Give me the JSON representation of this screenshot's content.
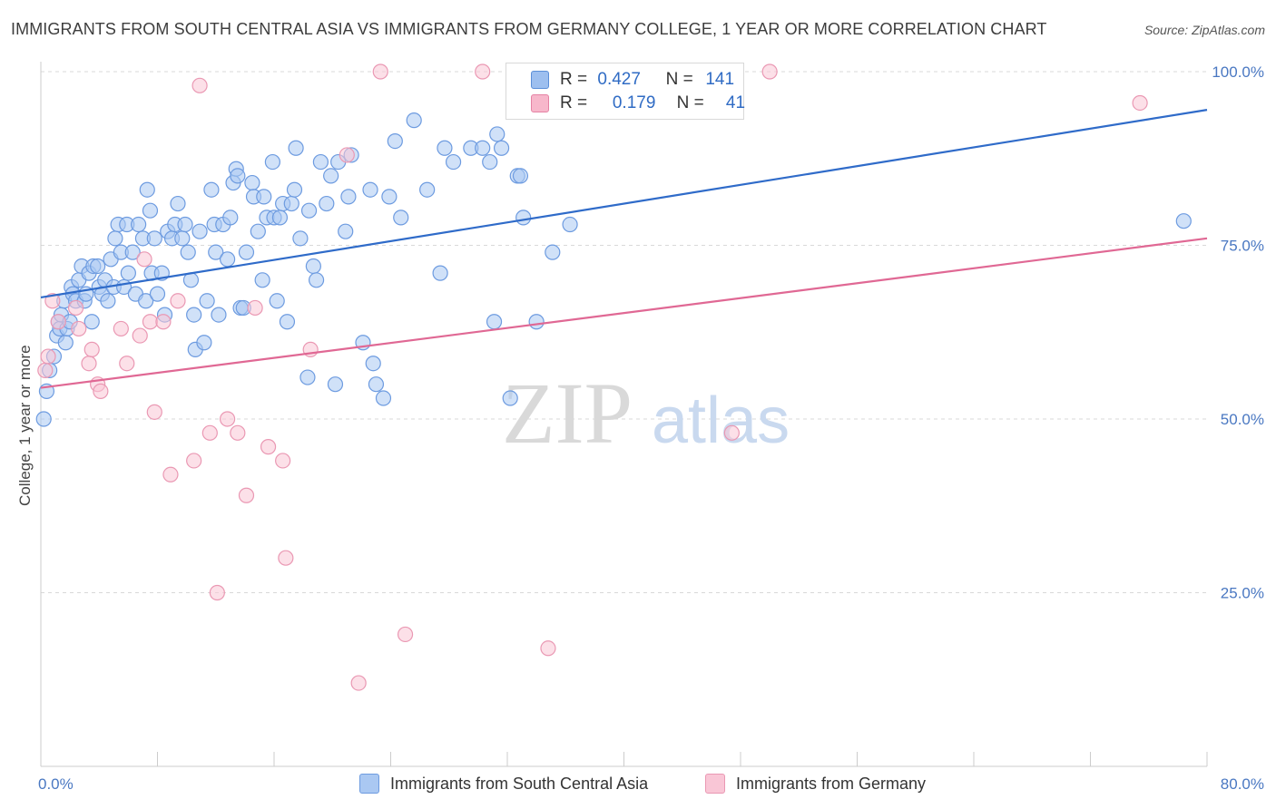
{
  "header": {
    "title": "IMMIGRANTS FROM SOUTH CENTRAL ASIA VS IMMIGRANTS FROM GERMANY COLLEGE, 1 YEAR OR MORE CORRELATION CHART",
    "source": "Source: ZipAtlas.com"
  },
  "watermark": {
    "zip": "ZIP",
    "atlas": "atlas"
  },
  "legend": {
    "r_label": "R =",
    "n_label": "N =",
    "series": [
      {
        "r": "0.427",
        "n": "141",
        "color": "#9dbfef",
        "edge": "#5b8fd8"
      },
      {
        "r": "0.179",
        "n": "41",
        "color": "#f7b7cb",
        "edge": "#e582a4"
      }
    ]
  },
  "bottom_legend": [
    {
      "label": "Immigrants from South Central Asia",
      "color": "#aac8f2",
      "edge": "#6d9be0"
    },
    {
      "label": "Immigrants from Germany",
      "color": "#f9c6d6",
      "edge": "#ea98b3"
    }
  ],
  "chart_data": {
    "type": "scatter",
    "ylabel": "College, 1 year or more",
    "x_range": [
      0,
      80
    ],
    "y_range": [
      0,
      100
    ],
    "x_tick_labels": [
      "0.0%",
      "80.0%"
    ],
    "y_ticks": [
      25,
      50,
      75,
      100
    ],
    "y_tick_labels": [
      "25.0%",
      "50.0%",
      "75.0%",
      "100.0%"
    ],
    "grid": "horizontal dashed",
    "series": [
      {
        "name": "Immigrants from South Central Asia",
        "color": "#6d9be0",
        "fill": "#aac8f2",
        "trend": {
          "x": [
            0,
            80
          ],
          "y": [
            67.5,
            94.5
          ],
          "color": "#2f6bc9"
        },
        "points": [
          [
            0.2,
            50
          ],
          [
            0.4,
            54
          ],
          [
            0.6,
            57
          ],
          [
            0.9,
            59
          ],
          [
            1.1,
            62
          ],
          [
            1.2,
            64
          ],
          [
            1.3,
            63
          ],
          [
            1.4,
            65
          ],
          [
            1.6,
            67
          ],
          [
            1.7,
            61
          ],
          [
            1.8,
            63
          ],
          [
            2.0,
            64
          ],
          [
            2.1,
            69
          ],
          [
            2.2,
            68
          ],
          [
            2.4,
            67
          ],
          [
            2.6,
            70
          ],
          [
            2.8,
            72
          ],
          [
            3.0,
            67
          ],
          [
            3.1,
            68
          ],
          [
            3.3,
            71
          ],
          [
            3.5,
            64
          ],
          [
            3.6,
            72
          ],
          [
            3.9,
            72
          ],
          [
            4.0,
            69
          ],
          [
            4.2,
            68
          ],
          [
            4.4,
            70
          ],
          [
            4.6,
            67
          ],
          [
            4.8,
            73
          ],
          [
            5.0,
            69
          ],
          [
            5.1,
            76
          ],
          [
            5.3,
            78
          ],
          [
            5.5,
            74
          ],
          [
            5.7,
            69
          ],
          [
            5.9,
            78
          ],
          [
            6.0,
            71
          ],
          [
            6.3,
            74
          ],
          [
            6.5,
            68
          ],
          [
            6.7,
            78
          ],
          [
            7.0,
            76
          ],
          [
            7.2,
            67
          ],
          [
            7.3,
            83
          ],
          [
            7.5,
            80
          ],
          [
            7.6,
            71
          ],
          [
            7.8,
            76
          ],
          [
            8.0,
            68
          ],
          [
            8.3,
            71
          ],
          [
            8.5,
            65
          ],
          [
            8.7,
            77
          ],
          [
            9.0,
            76
          ],
          [
            9.2,
            78
          ],
          [
            9.4,
            81
          ],
          [
            9.7,
            76
          ],
          [
            9.9,
            78
          ],
          [
            10.1,
            74
          ],
          [
            10.3,
            70
          ],
          [
            10.5,
            65
          ],
          [
            10.6,
            60
          ],
          [
            10.9,
            77
          ],
          [
            11.2,
            61
          ],
          [
            11.4,
            67
          ],
          [
            11.7,
            83
          ],
          [
            11.9,
            78
          ],
          [
            12.0,
            74
          ],
          [
            12.2,
            65
          ],
          [
            12.5,
            78
          ],
          [
            12.8,
            73
          ],
          [
            13.0,
            79
          ],
          [
            13.2,
            84
          ],
          [
            13.4,
            86
          ],
          [
            13.5,
            85
          ],
          [
            13.7,
            66
          ],
          [
            13.9,
            66
          ],
          [
            14.1,
            74
          ],
          [
            14.5,
            84
          ],
          [
            14.6,
            82
          ],
          [
            14.9,
            77
          ],
          [
            15.2,
            70
          ],
          [
            15.3,
            82
          ],
          [
            15.5,
            79
          ],
          [
            15.9,
            87
          ],
          [
            16.0,
            79
          ],
          [
            16.2,
            67
          ],
          [
            16.4,
            79
          ],
          [
            16.6,
            81
          ],
          [
            16.9,
            64
          ],
          [
            17.2,
            81
          ],
          [
            17.4,
            83
          ],
          [
            17.5,
            89
          ],
          [
            17.8,
            76
          ],
          [
            18.3,
            56
          ],
          [
            18.4,
            80
          ],
          [
            18.7,
            72
          ],
          [
            18.9,
            70
          ],
          [
            19.2,
            87
          ],
          [
            19.6,
            81
          ],
          [
            19.9,
            85
          ],
          [
            20.2,
            55
          ],
          [
            20.4,
            87
          ],
          [
            20.9,
            77
          ],
          [
            21.1,
            82
          ],
          [
            21.3,
            88
          ],
          [
            22.1,
            61
          ],
          [
            22.6,
            83
          ],
          [
            22.8,
            58
          ],
          [
            23.0,
            55
          ],
          [
            23.5,
            53
          ],
          [
            23.9,
            82
          ],
          [
            24.3,
            90
          ],
          [
            24.7,
            79
          ],
          [
            25.6,
            93
          ],
          [
            26.5,
            83
          ],
          [
            27.4,
            71
          ],
          [
            27.7,
            89
          ],
          [
            28.3,
            87
          ],
          [
            29.5,
            89
          ],
          [
            30.3,
            89
          ],
          [
            30.8,
            87
          ],
          [
            31.1,
            64
          ],
          [
            31.3,
            91
          ],
          [
            31.6,
            89
          ],
          [
            32.2,
            53
          ],
          [
            32.7,
            85
          ],
          [
            32.9,
            85
          ],
          [
            33.1,
            79
          ],
          [
            34.0,
            64
          ],
          [
            35.1,
            74
          ],
          [
            36.3,
            78
          ],
          [
            78.4,
            78.5
          ]
        ]
      },
      {
        "name": "Immigrants from Germany",
        "color": "#ea98b3",
        "fill": "#f9c6d6",
        "trend": {
          "x": [
            0,
            80
          ],
          "y": [
            54.5,
            76
          ],
          "color": "#e06894"
        },
        "points": [
          [
            0.3,
            57
          ],
          [
            0.5,
            59
          ],
          [
            0.8,
            67
          ],
          [
            1.2,
            64
          ],
          [
            2.4,
            66
          ],
          [
            2.6,
            63
          ],
          [
            3.3,
            58
          ],
          [
            3.5,
            60
          ],
          [
            3.9,
            55
          ],
          [
            4.1,
            54
          ],
          [
            5.5,
            63
          ],
          [
            5.9,
            58
          ],
          [
            6.8,
            62
          ],
          [
            7.1,
            73
          ],
          [
            7.5,
            64
          ],
          [
            7.8,
            51
          ],
          [
            8.4,
            64
          ],
          [
            8.9,
            42
          ],
          [
            9.4,
            67
          ],
          [
            10.5,
            44
          ],
          [
            10.9,
            98
          ],
          [
            11.6,
            48
          ],
          [
            12.1,
            25
          ],
          [
            12.8,
            50
          ],
          [
            13.5,
            48
          ],
          [
            14.1,
            39
          ],
          [
            14.7,
            66
          ],
          [
            15.6,
            46
          ],
          [
            16.6,
            44
          ],
          [
            16.8,
            30
          ],
          [
            18.5,
            60
          ],
          [
            21.0,
            88
          ],
          [
            21.8,
            12
          ],
          [
            23.3,
            100
          ],
          [
            25.0,
            19
          ],
          [
            30.3,
            100
          ],
          [
            34.8,
            17
          ],
          [
            47.4,
            48
          ],
          [
            50.0,
            100
          ],
          [
            75.4,
            95.5
          ]
        ]
      }
    ]
  }
}
